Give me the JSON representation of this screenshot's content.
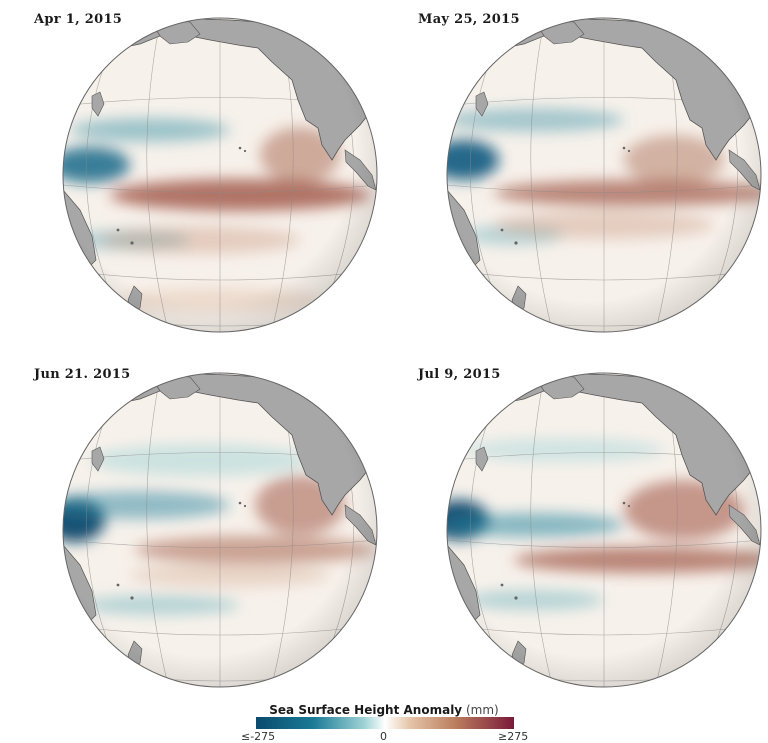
{
  "panels": [
    {
      "date": "Apr 1, 2015"
    },
    {
      "date": "May 25, 2015"
    },
    {
      "date": "Jun 21. 2015"
    },
    {
      "date": "Jul 9, 2015"
    }
  ],
  "legend": {
    "title": "Sea Surface Height Anomaly",
    "unit": "(mm)",
    "min_label": "≤-275",
    "mid_label": "0",
    "max_label": "≥275",
    "colors": {
      "negative": "#0a4a6e",
      "neutral": "#ffffff",
      "positive": "#7a1a3a"
    }
  }
}
